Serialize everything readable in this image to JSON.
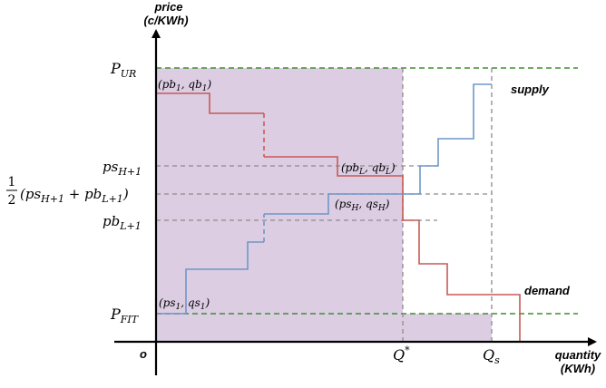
{
  "yaxis": {
    "title_line1": "price",
    "title_line2": "(c/KWh)"
  },
  "xaxis": {
    "title_line1": "quantity",
    "title_line2": "(KWh)"
  },
  "origin": "o",
  "ylabels": {
    "pur": {
      "main": "P",
      "sub": "UR"
    },
    "psh1": {
      "main": "ps",
      "sub": "H+1"
    },
    "half_pre": "(ps",
    "half_mid": " + pb",
    "half_post": ")",
    "half_sub1": "H+1",
    "half_sub2": "L+1",
    "frac_num": "1",
    "frac_den": "2",
    "pbl1": {
      "main": "pb",
      "sub": "L+1"
    },
    "pfit": {
      "main": "P",
      "sub": "FIT"
    }
  },
  "xlabels": {
    "qstar": {
      "main": "Q",
      "sup": "*"
    },
    "qs": {
      "main": "Q",
      "sub": "s"
    }
  },
  "points": {
    "pb1": {
      "open": "(pb",
      "sub1": "1",
      "mid": ", qb",
      "sub2": "1",
      "close": ")"
    },
    "pbL": {
      "open": "(pb",
      "sub1": "L",
      "mid": ", qb",
      "sub2": "L",
      "close": ")"
    },
    "psH": {
      "open": "(ps",
      "sub1": "H",
      "mid": ", qs",
      "sub2": "H",
      "close": ")"
    },
    "ps1": {
      "open": "(ps",
      "sub1": "1",
      "mid": ", qs",
      "sub2": "1",
      "close": ")"
    }
  },
  "curves": {
    "supply": "supply",
    "demand": "demand"
  },
  "colors": {
    "shade": "#dccde3",
    "supply": "#6e97c8",
    "demand": "#c75a56",
    "dashed_green": "#3f8f2f",
    "dashed_gray": "#8c8c8c"
  }
}
